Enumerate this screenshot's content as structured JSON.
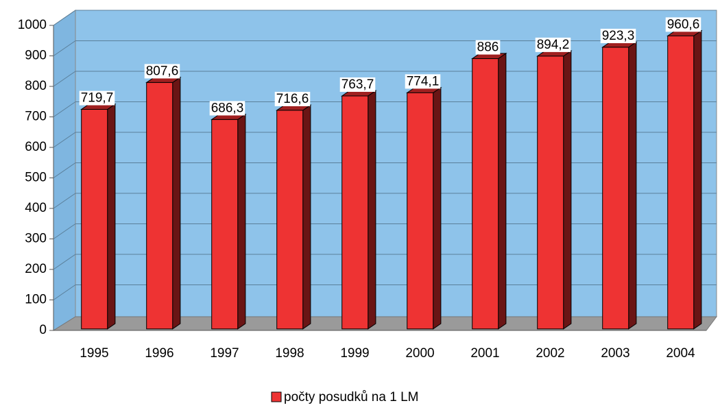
{
  "chart_data": {
    "type": "bar3d",
    "categories": [
      "1995",
      "1996",
      "1997",
      "1998",
      "1999",
      "2000",
      "2001",
      "2002",
      "2003",
      "2004"
    ],
    "series": [
      {
        "name": "počty posudků na 1 LM",
        "color": "#ee3333",
        "values": [
          719.7,
          807.6,
          686.3,
          716.6,
          763.7,
          774.1,
          886,
          894.2,
          923.3,
          960.6
        ],
        "value_labels": [
          "719,7",
          "807,6",
          "686,3",
          "716,6",
          "763,7",
          "774,1",
          "886",
          "894,2",
          "923,3",
          "960,6"
        ]
      }
    ],
    "ylim": [
      0,
      1000
    ],
    "yticks": [
      0,
      100,
      200,
      300,
      400,
      500,
      600,
      700,
      800,
      900,
      1000
    ],
    "grid": true,
    "legend": "bottom"
  }
}
